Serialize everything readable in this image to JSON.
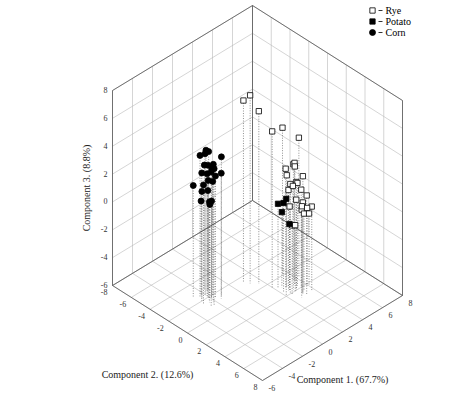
{
  "chart_data": {
    "type": "scatter3d",
    "x_label": "Component 1. (67.7%)",
    "y_label": "Component 2. (12.6%)",
    "z_label": "Component 3. (8.8%)",
    "xlim": [
      -6,
      8
    ],
    "xticks": [
      -6,
      -4,
      -2,
      0,
      2,
      4,
      6,
      8
    ],
    "ylim": [
      -8,
      8
    ],
    "yticks": [
      -8,
      -6,
      -4,
      -2,
      0,
      2,
      4,
      6,
      8
    ],
    "zlim": [
      -6,
      8
    ],
    "zticks": [
      -6,
      -4,
      -2,
      0,
      2,
      4,
      6,
      8
    ],
    "grid": true,
    "legend": "top-right",
    "series": [
      {
        "name": "Rye",
        "marker": "square-open",
        "color": "#000000",
        "x": [
          3.0,
          2.6,
          3.4,
          2.8,
          3.8,
          3.2,
          2.4,
          3.6,
          3.1,
          2.9,
          3.5,
          2.7,
          3.3,
          4.0,
          2.5,
          3.0,
          3.7,
          2.8,
          3.4,
          3.1,
          2.6,
          3.9,
          3.2,
          2.9,
          1.2,
          1.6,
          2.0,
          4.2,
          3.5,
          1.0
        ],
        "y": [
          2.0,
          1.6,
          2.4,
          1.2,
          2.8,
          1.8,
          2.2,
          1.0,
          2.6,
          1.4,
          2.0,
          2.9,
          1.5,
          2.3,
          1.9,
          2.7,
          1.1,
          2.1,
          1.7,
          2.5,
          1.3,
          2.2,
          2.9,
          1.8,
          -1.0,
          -0.5,
          0.5,
          1.0,
          0.0,
          -1.5
        ],
        "z": [
          0.5,
          1.2,
          -0.5,
          2.0,
          0.0,
          1.6,
          -1.0,
          0.8,
          2.4,
          -0.2,
          1.0,
          0.3,
          2.8,
          -0.8,
          1.8,
          0.6,
          2.2,
          -1.2,
          1.4,
          0.2,
          2.6,
          -0.4,
          1.1,
          3.0,
          7.5,
          6.4,
          5.2,
          4.0,
          4.6,
          7.0
        ]
      },
      {
        "name": "Potato",
        "marker": "square",
        "color": "#000000",
        "x": [
          2.2,
          2.5,
          2.0,
          2.3,
          2.6
        ],
        "y": [
          1.5,
          1.0,
          2.0,
          0.8,
          1.7
        ],
        "z": [
          0.4,
          -0.6,
          1.0,
          0.0,
          -1.2
        ]
      },
      {
        "name": "Corn",
        "marker": "circle",
        "color": "#000000",
        "x": [
          -2.1,
          -1.8,
          -2.5,
          -1.5,
          -2.8,
          -2.2,
          -1.9,
          -2.4,
          -1.6,
          -2.0,
          -2.7,
          -1.3,
          -2.3,
          -1.7,
          -2.6,
          -2.0,
          -1.4,
          -2.9,
          -1.8,
          -2.2,
          -1.6,
          -2.4,
          -2.0,
          -1.9,
          -2.5
        ],
        "y": [
          -2.0,
          -1.5,
          -2.4,
          -1.2,
          -2.8,
          -1.8,
          -2.2,
          -1.0,
          -2.6,
          -1.7,
          -2.0,
          -1.4,
          -2.5,
          -1.9,
          -1.1,
          -2.3,
          -2.7,
          -1.6,
          -2.1,
          -1.3,
          -2.9,
          -1.5,
          -2.4,
          -1.8,
          -2.2
        ],
        "z": [
          3.5,
          2.8,
          4.2,
          3.0,
          2.0,
          4.6,
          1.5,
          3.8,
          2.4,
          1.0,
          3.2,
          4.0,
          0.8,
          2.2,
          3.6,
          4.4,
          1.8,
          2.6,
          0.5,
          3.9,
          2.9,
          1.2,
          4.1,
          3.3,
          1.7
        ]
      }
    ]
  }
}
